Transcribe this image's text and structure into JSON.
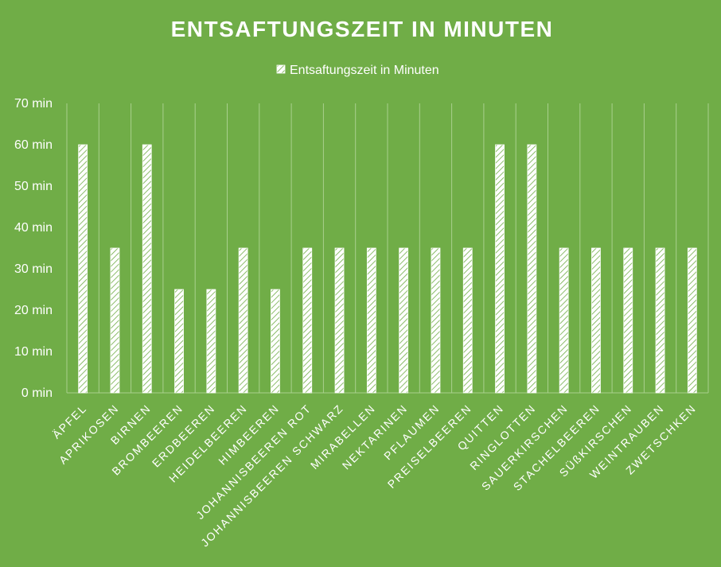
{
  "chart_data": {
    "type": "bar",
    "title": "ENTSAFTUNGSZEIT IN MINUTEN",
    "legend": {
      "position": "top",
      "entries": [
        "Entsaftungszeit in Minuten"
      ]
    },
    "series": [
      {
        "name": "Entsaftungszeit in Minuten",
        "values": [
          60,
          35,
          60,
          25,
          25,
          35,
          25,
          35,
          35,
          35,
          35,
          35,
          35,
          60,
          60,
          35,
          35,
          35,
          35,
          35
        ]
      }
    ],
    "categories": [
      "ÄPFEL",
      "APRIKOSEN",
      "BIRNEN",
      "BROMBEEREN",
      "ERDBEEREN",
      "HEIDELBEEREN",
      "HIMBEEREN",
      "JOHANNISBEEREN ROT",
      "JOHANNISBEEREN SCHWARZ",
      "MIRABELLEN",
      "NEKTARINEN",
      "PFLAUMEN",
      "PREISELBEEREN",
      "QUITTEN",
      "RINGLOTTEN",
      "SAUERKIRSCHEN",
      "STACHELBEEREN",
      "SÜßKIRSCHEN",
      "WEINTRAUBEN",
      "ZWETSCHKEN"
    ],
    "ylim": [
      0,
      70
    ],
    "yticks": [
      "0 min",
      "10 min",
      "20 min",
      "30 min",
      "40 min",
      "50 min",
      "60 min",
      "70 min"
    ],
    "grid": "vertical",
    "colors": {
      "background": "#70ad47",
      "bar_fill": "#ffffff",
      "bar_hatch": "#70ad47",
      "gridline": "#a9d08e",
      "text": "#ffffff"
    }
  }
}
